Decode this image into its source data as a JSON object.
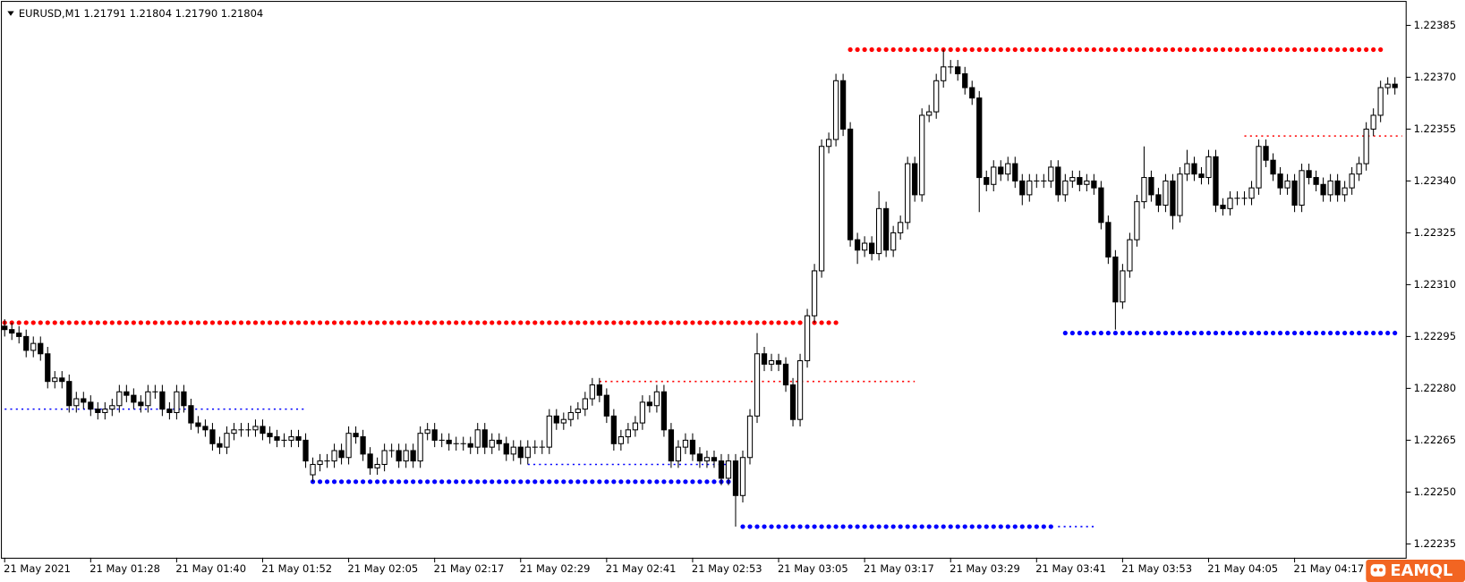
{
  "chart_data": {
    "type": "candlestick",
    "title": "EURUSD,M1  1.21791 1.21804 1.21790 1.21804",
    "watermark": "EAMQL",
    "ylim": [
      1.22231,
      1.22391
    ],
    "yticks": [
      1.22385,
      {
        "value": 1.2237,
        "label": "1.22370"
      },
      1.22355,
      {
        "value": 1.2234,
        "label": "1.22340"
      },
      1.22325,
      {
        "value": 1.2231,
        "label": "1.22310"
      },
      1.22295,
      {
        "value": 1.2228,
        "label": "1.22280"
      },
      1.22265,
      {
        "value": 1.2225,
        "label": "1.22250"
      },
      1.22235
    ],
    "bull_color": "#ffffff",
    "bear_color": "#000000",
    "categories": [
      "21 May 2021",
      null,
      null,
      null,
      null,
      null,
      null,
      null,
      null,
      null,
      null,
      null,
      "21 May 01:28",
      null,
      null,
      null,
      null,
      null,
      null,
      null,
      null,
      null,
      null,
      null,
      "21 May 01:40",
      null,
      null,
      null,
      null,
      null,
      null,
      null,
      null,
      null,
      null,
      null,
      "21 May 01:52",
      null,
      null,
      null,
      null,
      null,
      null,
      null,
      null,
      null,
      null,
      null,
      "21 May 02:05",
      null,
      null,
      null,
      null,
      null,
      null,
      null,
      null,
      null,
      null,
      null,
      "21 May 02:17",
      null,
      null,
      null,
      null,
      null,
      null,
      null,
      null,
      null,
      null,
      null,
      "21 May 02:29",
      null,
      null,
      null,
      null,
      null,
      null,
      null,
      null,
      null,
      null,
      null,
      "21 May 02:41",
      null,
      null,
      null,
      null,
      null,
      null,
      null,
      null,
      null,
      null,
      null,
      "21 May 02:53",
      null,
      null,
      null,
      null,
      null,
      null,
      null,
      null,
      null,
      null,
      null,
      "21 May 03:05",
      null,
      null,
      null,
      null,
      null,
      null,
      null,
      null,
      null,
      null,
      null,
      "21 May 03:17",
      null,
      null,
      null,
      null,
      null,
      null,
      null,
      null,
      null,
      null,
      null,
      "21 May 03:29",
      null,
      null,
      null,
      null,
      null,
      null,
      null,
      null,
      null,
      null,
      null,
      "21 May 03:41",
      null,
      null,
      null,
      null,
      null,
      null,
      null,
      null,
      null,
      null,
      null,
      "21 May 03:53",
      null,
      null,
      null,
      null,
      null,
      null,
      null,
      null,
      null,
      null,
      null,
      "21 May 04:05",
      null,
      null,
      null,
      null,
      null,
      null,
      null,
      null,
      null,
      null,
      null,
      "21 May 04:17",
      null,
      null,
      null,
      null,
      null,
      null,
      null,
      null,
      null,
      null,
      null,
      null,
      null,
      null
    ],
    "open": [
      1.22298,
      1.22297,
      1.22296,
      1.22295,
      1.22291,
      1.22293,
      1.2229,
      1.22282,
      1.22283,
      1.22282,
      1.22275,
      1.22277,
      1.22276,
      1.22274,
      1.22273,
      1.22274,
      1.22275,
      1.22279,
      1.22278,
      1.22276,
      1.22275,
      1.22279,
      1.22279,
      1.22274,
      1.22273,
      1.22279,
      1.22275,
      1.2227,
      1.22269,
      1.22268,
      1.22264,
      1.22263,
      1.22267,
      1.22268,
      1.22268,
      1.22268,
      1.22269,
      1.22267,
      1.22266,
      1.22265,
      1.22265,
      1.22266,
      1.22265,
      1.22255,
      1.22258,
      1.22259,
      1.22259,
      1.22262,
      1.2226,
      1.22267,
      1.22266,
      1.22261,
      1.22257,
      1.22258,
      1.22262,
      1.22262,
      1.22259,
      1.22262,
      1.22259,
      1.22267,
      1.22268,
      1.22265,
      1.22265,
      1.22264,
      1.22264,
      1.22264,
      1.22263,
      1.22268,
      1.22263,
      1.22265,
      1.22264,
      1.22261,
      1.22263,
      1.2226,
      1.22263,
      1.22263,
      1.22263,
      1.22272,
      1.2227,
      1.22271,
      1.22273,
      1.22274,
      1.22277,
      1.22281,
      1.22278,
      1.22272,
      1.22264,
      1.22266,
      1.22268,
      1.2227,
      1.22276,
      1.22275,
      1.22279,
      1.22268,
      1.22259,
      1.22263,
      1.22265,
      1.22261,
      1.22259,
      1.2226,
      1.22259,
      1.22254,
      1.22259,
      1.22249,
      1.2226,
      1.22272,
      1.2229,
      1.22287,
      1.22288,
      1.22287,
      1.22281,
      1.22271,
      1.22288,
      1.22301,
      1.22314,
      1.2235,
      1.22352,
      1.22369,
      1.22355,
      1.22323,
      1.2232,
      1.22322,
      1.22319,
      1.22332,
      1.2232,
      1.22325,
      1.22328,
      1.22345,
      1.22336,
      1.22359,
      1.2236,
      1.22369,
      1.22373,
      1.22373,
      1.22371,
      1.22367,
      1.22364,
      1.22341,
      1.22339,
      1.22344,
      1.22342,
      1.22345,
      1.2234,
      1.22336,
      1.2234,
      1.2234,
      1.2234,
      1.22344,
      1.22336,
      1.2234,
      1.22341,
      1.22339,
      1.2234,
      1.22338,
      1.22328,
      1.22318,
      1.22305,
      1.22314,
      1.22323,
      1.22334,
      1.22341,
      1.22336,
      1.22333,
      1.2234,
      1.2233,
      1.22342,
      1.22345,
      1.22342,
      1.22341,
      1.22347,
      1.22333,
      1.22332,
      1.22335,
      1.22335,
      1.22335,
      1.22338,
      1.2235,
      1.22346,
      1.22342,
      1.22338,
      1.2234,
      1.22333,
      1.22343,
      1.22341,
      1.22339,
      1.22336,
      1.2234,
      1.22336,
      1.22338,
      1.22342,
      1.22345,
      1.22355,
      1.22359,
      1.22367,
      1.22368
    ],
    "high": [
      1.223,
      1.22299,
      1.22298,
      1.22297,
      1.22295,
      1.22295,
      1.22292,
      1.22285,
      1.22285,
      1.22284,
      1.22279,
      1.22279,
      1.22278,
      1.22276,
      1.22276,
      1.22277,
      1.22281,
      1.22281,
      1.2228,
      1.22278,
      1.22281,
      1.22281,
      1.22281,
      1.22276,
      1.22281,
      1.22281,
      1.22277,
      1.22272,
      1.22271,
      1.2227,
      1.22266,
      1.22269,
      1.2227,
      1.2227,
      1.2227,
      1.22271,
      1.22271,
      1.22269,
      1.22268,
      1.22267,
      1.22268,
      1.22268,
      1.22267,
      1.2226,
      1.22261,
      1.22261,
      1.22264,
      1.22264,
      1.22269,
      1.22269,
      1.22268,
      1.22263,
      1.2226,
      1.22264,
      1.22264,
      1.22264,
      1.22264,
      1.22264,
      1.22269,
      1.2227,
      1.2227,
      1.22267,
      1.22267,
      1.22266,
      1.22266,
      1.22266,
      1.2227,
      1.2227,
      1.22267,
      1.22267,
      1.22266,
      1.22265,
      1.22265,
      1.22265,
      1.22265,
      1.22265,
      1.22274,
      1.22274,
      1.22273,
      1.22275,
      1.22276,
      1.22279,
      1.22283,
      1.22283,
      1.2228,
      1.22274,
      1.22268,
      1.2227,
      1.22272,
      1.22278,
      1.22278,
      1.22281,
      1.22281,
      1.2227,
      1.22265,
      1.22267,
      1.22267,
      1.22263,
      1.22262,
      1.22262,
      1.22261,
      1.22261,
      1.22261,
      1.22262,
      1.22274,
      1.22296,
      1.22292,
      1.2229,
      1.2229,
      1.22289,
      1.22283,
      1.2229,
      1.22303,
      1.22316,
      1.22352,
      1.22354,
      1.22371,
      1.22371,
      1.22357,
      1.22325,
      1.22324,
      1.22324,
      1.22337,
      1.22334,
      1.22327,
      1.2233,
      1.22347,
      1.22347,
      1.22361,
      1.22362,
      1.22371,
      1.22378,
      1.22375,
      1.22375,
      1.22373,
      1.22369,
      1.22366,
      1.22343,
      1.22346,
      1.22346,
      1.22347,
      1.22347,
      1.22342,
      1.22342,
      1.22342,
      1.22342,
      1.22346,
      1.22346,
      1.22342,
      1.22343,
      1.22343,
      1.22342,
      1.22342,
      1.2234,
      1.2233,
      1.2232,
      1.22316,
      1.22325,
      1.22336,
      1.2235,
      1.22343,
      1.22338,
      1.22342,
      1.22342,
      1.22344,
      1.22349,
      1.22347,
      1.22344,
      1.22349,
      1.22349,
      1.22335,
      1.22337,
      1.22337,
      1.22337,
      1.2234,
      1.22352,
      1.22352,
      1.22348,
      1.22344,
      1.22342,
      1.22342,
      1.22345,
      1.22345,
      1.22343,
      1.22341,
      1.22342,
      1.22342,
      1.2234,
      1.22344,
      1.22347,
      1.22357,
      1.22361,
      1.22369,
      1.2237,
      1.2237
    ],
    "low": [
      1.22295,
      1.22294,
      1.22293,
      1.22289,
      1.22289,
      1.22288,
      1.2228,
      1.2228,
      1.2228,
      1.22273,
      1.22273,
      1.22274,
      1.22272,
      1.22271,
      1.22271,
      1.22272,
      1.22273,
      1.22276,
      1.22274,
      1.22273,
      1.22273,
      1.22277,
      1.22272,
      1.22271,
      1.22271,
      1.22273,
      1.22268,
      1.22267,
      1.22266,
      1.22262,
      1.22261,
      1.22261,
      1.22265,
      1.22266,
      1.22266,
      1.22266,
      1.22265,
      1.22264,
      1.22263,
      1.22263,
      1.22263,
      1.22263,
      1.22257,
      1.22253,
      1.22256,
      1.22257,
      1.22257,
      1.22258,
      1.22258,
      1.22264,
      1.22259,
      1.22255,
      1.22255,
      1.22256,
      1.2226,
      1.22257,
      1.22257,
      1.22257,
      1.22257,
      1.22265,
      1.22263,
      1.22263,
      1.22262,
      1.22262,
      1.22262,
      1.22261,
      1.22261,
      1.22261,
      1.22261,
      1.22262,
      1.22259,
      1.22259,
      1.22258,
      1.22258,
      1.22261,
      1.22261,
      1.22261,
      1.22268,
      1.22268,
      1.22269,
      1.22271,
      1.22272,
      1.22275,
      1.22276,
      1.2227,
      1.22262,
      1.22262,
      1.22264,
      1.22266,
      1.22268,
      1.22273,
      1.22273,
      1.22266,
      1.22257,
      1.22257,
      1.22261,
      1.22259,
      1.22257,
      1.22257,
      1.22257,
      1.22252,
      1.22252,
      1.2224,
      1.22247,
      1.22258,
      1.2227,
      1.22285,
      1.22285,
      1.22285,
      1.22279,
      1.22269,
      1.22269,
      1.22286,
      1.22299,
      1.22312,
      1.22348,
      1.2235,
      1.22353,
      1.22321,
      1.22316,
      1.22318,
      1.22317,
      1.22317,
      1.22318,
      1.22318,
      1.22323,
      1.22326,
      1.22334,
      1.22334,
      1.22357,
      1.22358,
      1.22367,
      1.22371,
      1.22369,
      1.22365,
      1.22362,
      1.22331,
      1.22337,
      1.22337,
      1.2234,
      1.2234,
      1.22338,
      1.22333,
      1.22334,
      1.22338,
      1.22338,
      1.22338,
      1.22334,
      1.22334,
      1.22338,
      1.22337,
      1.22337,
      1.22336,
      1.22326,
      1.22316,
      1.22297,
      1.22303,
      1.22312,
      1.22321,
      1.22332,
      1.22334,
      1.22331,
      1.22331,
      1.22326,
      1.22328,
      1.2234,
      1.2234,
      1.22339,
      1.22339,
      1.22331,
      1.2233,
      1.2233,
      1.22333,
      1.22333,
      1.22333,
      1.22336,
      1.22344,
      1.2234,
      1.22336,
      1.22336,
      1.22331,
      1.22331,
      1.22339,
      1.22337,
      1.22334,
      1.22334,
      1.22334,
      1.22334,
      1.22336,
      1.2234,
      1.22343,
      1.22353,
      1.22357,
      1.22365,
      1.22365
    ],
    "close": [
      1.22297,
      1.22296,
      1.22295,
      1.22291,
      1.22293,
      1.2229,
      1.22282,
      1.22283,
      1.22282,
      1.22275,
      1.22277,
      1.22276,
      1.22274,
      1.22273,
      1.22274,
      1.22275,
      1.22279,
      1.22278,
      1.22276,
      1.22275,
      1.22279,
      1.22279,
      1.22274,
      1.22273,
      1.22279,
      1.22275,
      1.2227,
      1.22269,
      1.22268,
      1.22264,
      1.22263,
      1.22267,
      1.22268,
      1.22268,
      1.22268,
      1.22269,
      1.22267,
      1.22266,
      1.22265,
      1.22265,
      1.22266,
      1.22265,
      1.22259,
      1.22258,
      1.22259,
      1.22259,
      1.22262,
      1.2226,
      1.22267,
      1.22266,
      1.22261,
      1.22257,
      1.22258,
      1.22262,
      1.22262,
      1.22259,
      1.22262,
      1.22259,
      1.22267,
      1.22268,
      1.22265,
      1.22265,
      1.22264,
      1.22264,
      1.22264,
      1.22263,
      1.22268,
      1.22263,
      1.22265,
      1.22264,
      1.22261,
      1.22263,
      1.2226,
      1.22263,
      1.22263,
      1.22263,
      1.22272,
      1.2227,
      1.22271,
      1.22273,
      1.22274,
      1.22277,
      1.22281,
      1.22278,
      1.22272,
      1.22264,
      1.22266,
      1.22268,
      1.2227,
      1.22276,
      1.22275,
      1.22279,
      1.22268,
      1.22259,
      1.22263,
      1.22265,
      1.22261,
      1.22259,
      1.2226,
      1.22259,
      1.22254,
      1.22259,
      1.22249,
      1.2226,
      1.22272,
      1.2229,
      1.22287,
      1.22288,
      1.22287,
      1.22281,
      1.22271,
      1.22288,
      1.22301,
      1.22314,
      1.2235,
      1.22352,
      1.22369,
      1.22355,
      1.22323,
      1.2232,
      1.22322,
      1.22319,
      1.22332,
      1.2232,
      1.22325,
      1.22328,
      1.22345,
      1.22336,
      1.22359,
      1.2236,
      1.22369,
      1.22373,
      1.22373,
      1.22371,
      1.22367,
      1.22364,
      1.22341,
      1.22339,
      1.22344,
      1.22342,
      1.22345,
      1.2234,
      1.22336,
      1.2234,
      1.2234,
      1.2234,
      1.22344,
      1.22336,
      1.2234,
      1.22341,
      1.22339,
      1.2234,
      1.22338,
      1.22328,
      1.22318,
      1.22305,
      1.22314,
      1.22323,
      1.22334,
      1.22341,
      1.22336,
      1.22333,
      1.2234,
      1.2233,
      1.22342,
      1.22345,
      1.22342,
      1.22341,
      1.22347,
      1.22333,
      1.22332,
      1.22335,
      1.22335,
      1.22335,
      1.22338,
      1.2235,
      1.22346,
      1.22342,
      1.22338,
      1.2234,
      1.22333,
      1.22343,
      1.22341,
      1.22339,
      1.22336,
      1.2234,
      1.22336,
      1.22338,
      1.22342,
      1.22345,
      1.22355,
      1.22359,
      1.22367,
      1.22368,
      1.22367
    ],
    "levels": [
      {
        "price": 1.22299,
        "start": 0,
        "end": 117,
        "style": "dots",
        "color": "#ff0000"
      },
      {
        "price": 1.22378,
        "start": 118,
        "end": 192,
        "style": "dots",
        "color": "#ff0000"
      },
      {
        "price": 1.22253,
        "start": 43,
        "end": 102,
        "style": "dots",
        "color": "#0000ff"
      },
      {
        "price": 1.2224,
        "start": 103,
        "end": 147,
        "style": "dots",
        "color": "#0000ff"
      },
      {
        "price": 1.2224,
        "start": 147,
        "end": 152,
        "style": "dotted",
        "color": "#0000ff"
      },
      {
        "price": 1.22296,
        "start": 148,
        "end": 195,
        "style": "dots",
        "color": "#0000ff"
      },
      {
        "price": 1.22274,
        "start": 0,
        "end": 42,
        "style": "dotted",
        "color": "#0000ff"
      },
      {
        "price": 1.22282,
        "start": 83,
        "end": 127,
        "style": "dotted",
        "color": "#ff0000"
      },
      {
        "price": 1.22258,
        "start": 73,
        "end": 101,
        "style": "dotted",
        "color": "#0000ff"
      },
      {
        "price": 1.22353,
        "start": 173,
        "end": 195,
        "style": "dotted",
        "color": "#ff0000"
      }
    ]
  }
}
